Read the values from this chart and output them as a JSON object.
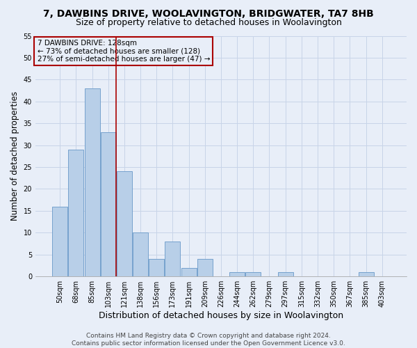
{
  "title": "7, DAWBINS DRIVE, WOOLAVINGTON, BRIDGWATER, TA7 8HB",
  "subtitle": "Size of property relative to detached houses in Woolavington",
  "xlabel": "Distribution of detached houses by size in Woolavington",
  "ylabel": "Number of detached properties",
  "categories": [
    "50sqm",
    "68sqm",
    "85sqm",
    "103sqm",
    "121sqm",
    "138sqm",
    "156sqm",
    "173sqm",
    "191sqm",
    "209sqm",
    "226sqm",
    "244sqm",
    "262sqm",
    "279sqm",
    "297sqm",
    "315sqm",
    "332sqm",
    "350sqm",
    "367sqm",
    "385sqm",
    "403sqm"
  ],
  "values": [
    16,
    29,
    43,
    33,
    24,
    10,
    4,
    8,
    2,
    4,
    0,
    1,
    1,
    0,
    1,
    0,
    0,
    0,
    0,
    1,
    0
  ],
  "bar_color": "#b8cfe8",
  "bar_edge_color": "#6898c8",
  "grid_color": "#c8d4e8",
  "background_color": "#e8eef8",
  "annotation_box_color": "#aa0000",
  "annotation_text": "7 DAWBINS DRIVE: 128sqm\n← 73% of detached houses are smaller (128)\n27% of semi-detached houses are larger (47) →",
  "vline_color": "#aa0000",
  "vline_x_index": 3.5,
  "ylim": [
    0,
    55
  ],
  "yticks": [
    0,
    5,
    10,
    15,
    20,
    25,
    30,
    35,
    40,
    45,
    50,
    55
  ],
  "footer": "Contains HM Land Registry data © Crown copyright and database right 2024.\nContains public sector information licensed under the Open Government Licence v3.0.",
  "title_fontsize": 10,
  "subtitle_fontsize": 9,
  "xlabel_fontsize": 9,
  "ylabel_fontsize": 8.5,
  "tick_fontsize": 7,
  "footer_fontsize": 6.5,
  "annotation_fontsize": 7.5
}
